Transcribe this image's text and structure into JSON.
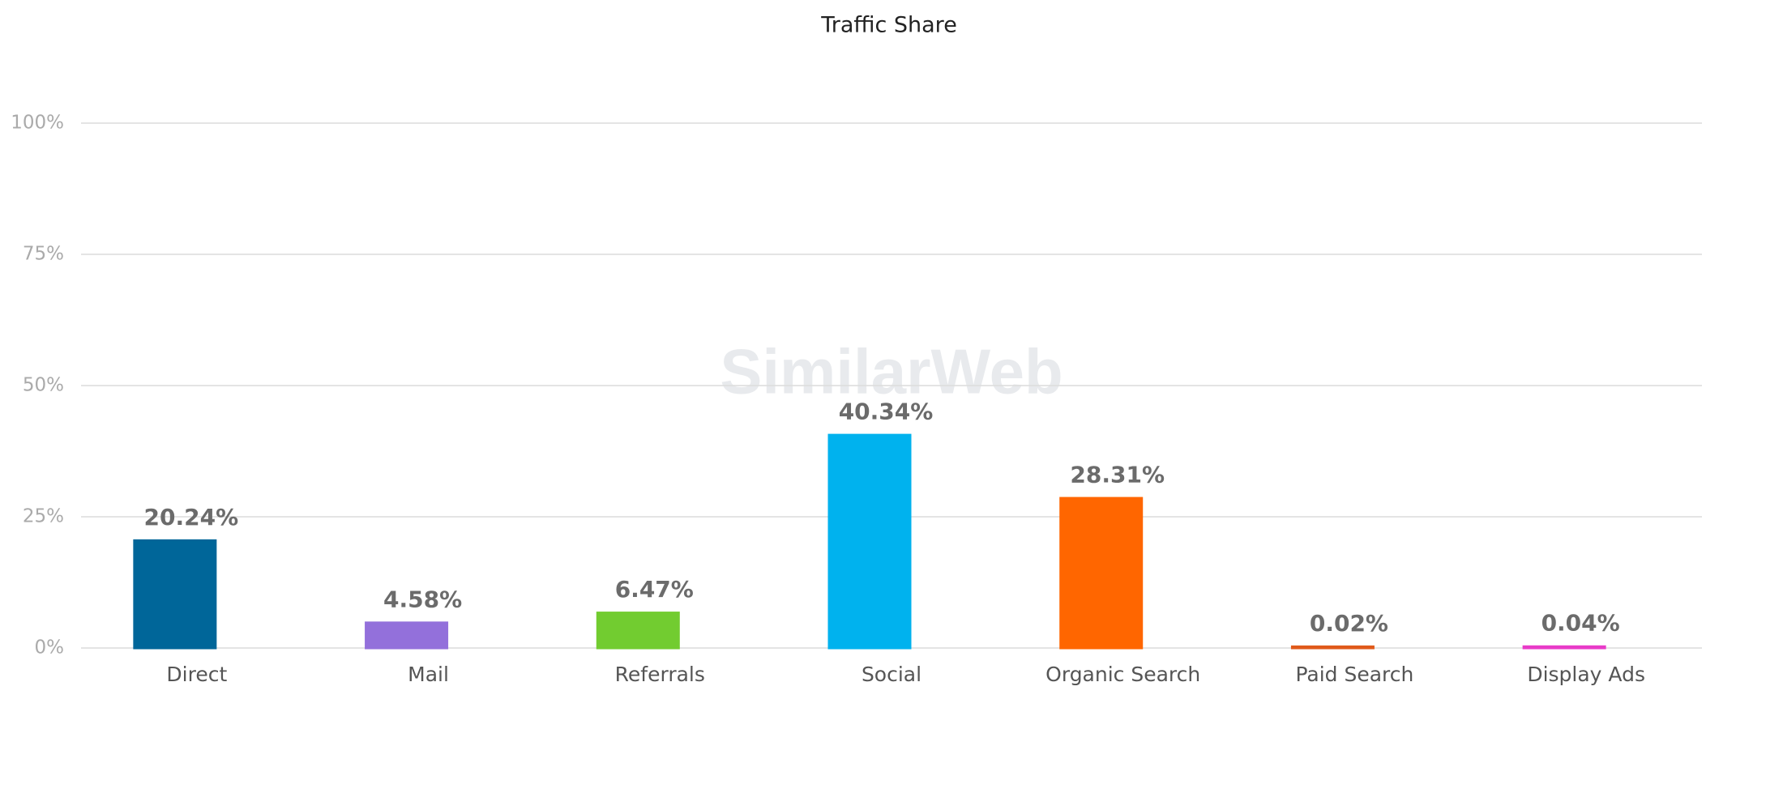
{
  "chart_data": {
    "type": "bar",
    "title": "Traffic Share",
    "watermark": "SimilarWeb",
    "categories": [
      "Direct",
      "Mail",
      "Referrals",
      "Social",
      "Organic Search",
      "Paid Search",
      "Display Ads"
    ],
    "values": [
      20.24,
      4.58,
      6.47,
      40.34,
      28.31,
      0.02,
      0.04
    ],
    "value_labels": [
      "20.24%",
      "4.58%",
      "6.47%",
      "40.34%",
      "28.31%",
      "0.02%",
      "0.04%"
    ],
    "colors": [
      "#006699",
      "#9370db",
      "#72cc30",
      "#00b2ee",
      "#ff6600",
      "#e05a1a",
      "#e83bc8"
    ],
    "ylim": [
      0,
      100
    ],
    "yticks": [
      {
        "value": 0,
        "label": "0%"
      },
      {
        "value": 25,
        "label": "25%"
      },
      {
        "value": 50,
        "label": "50%"
      },
      {
        "value": 75,
        "label": "75%"
      },
      {
        "value": 100,
        "label": "100%"
      }
    ],
    "grid": true
  }
}
